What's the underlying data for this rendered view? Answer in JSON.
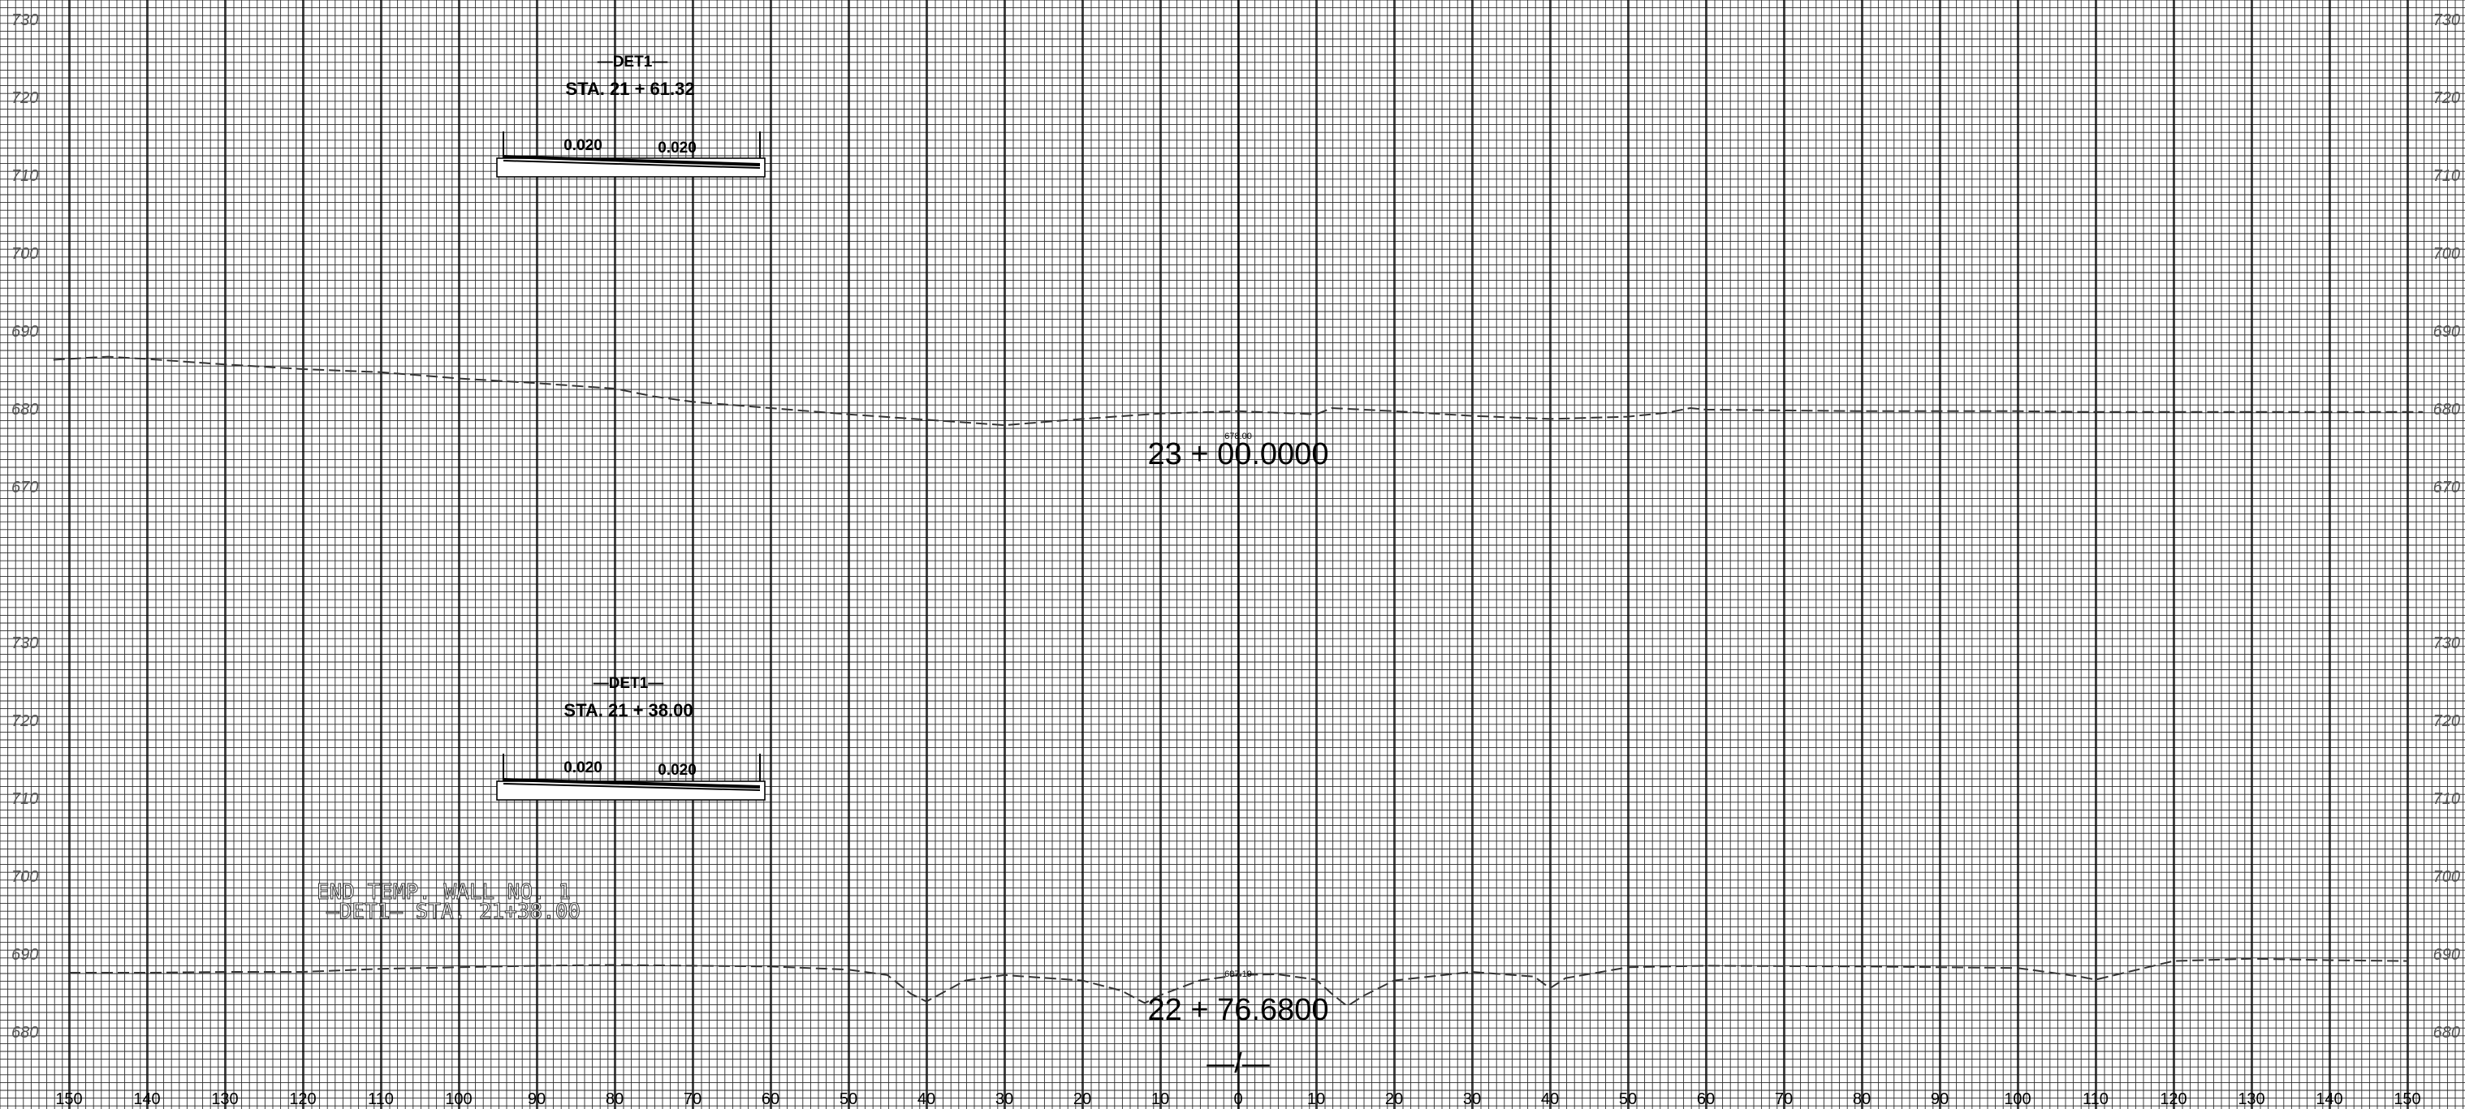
{
  "sections": [
    {
      "id": "upper",
      "detail_label": "—DET1—",
      "station_label": "STA. 21 + 61.32",
      "slope_left": "0.020",
      "slope_right": "0.020",
      "station_title": "23 + 00.0000",
      "center_elevation_label": "678.00",
      "elevations": [
        "730",
        "720",
        "710",
        "700",
        "690",
        "680",
        "670"
      ],
      "ground_profile": [
        [
          152,
          686.2
        ],
        [
          145,
          686.6
        ],
        [
          140,
          686.3
        ],
        [
          130,
          685.6
        ],
        [
          120,
          685.0
        ],
        [
          110,
          684.6
        ],
        [
          100,
          683.8
        ],
        [
          90,
          683.2
        ],
        [
          80,
          682.5
        ],
        [
          75,
          681.5
        ],
        [
          70,
          680.8
        ],
        [
          60,
          680.0
        ],
        [
          50,
          679.2
        ],
        [
          40,
          678.5
        ],
        [
          30,
          677.8
        ],
        [
          20,
          678.6
        ],
        [
          10,
          679.3
        ],
        [
          0,
          679.6
        ],
        [
          -10,
          679.2
        ],
        [
          -12,
          680.0
        ],
        [
          -20,
          679.6
        ],
        [
          -30,
          679.0
        ],
        [
          -40,
          678.6
        ],
        [
          -50,
          678.9
        ],
        [
          -55,
          679.4
        ],
        [
          -58,
          680.0
        ],
        [
          -60,
          679.8
        ],
        [
          -70,
          679.7
        ],
        [
          -80,
          679.6
        ],
        [
          -90,
          679.6
        ],
        [
          -100,
          679.6
        ],
        [
          -110,
          679.5
        ],
        [
          -120,
          679.5
        ],
        [
          -130,
          679.5
        ],
        [
          -140,
          679.5
        ],
        [
          -152,
          679.5
        ]
      ]
    },
    {
      "id": "lower",
      "detail_label": "—DET1—",
      "station_label": "STA. 21 + 38.00",
      "slope_left": "0.020",
      "slope_right": "0.020",
      "station_title": "22 + 76.6800",
      "center_elevation_label": "687.19",
      "note_line1": "END TEMP. WALL NO. 1",
      "note_line2": "—DET1— STA. 21+38.00",
      "elevations": [
        "730",
        "720",
        "710",
        "700",
        "690",
        "680"
      ],
      "ground_profile": [
        [
          150,
          687.5
        ],
        [
          140,
          687.5
        ],
        [
          130,
          687.6
        ],
        [
          120,
          687.6
        ],
        [
          110,
          688.0
        ],
        [
          100,
          688.2
        ],
        [
          90,
          688.4
        ],
        [
          80,
          688.5
        ],
        [
          70,
          688.4
        ],
        [
          60,
          688.3
        ],
        [
          50,
          687.9
        ],
        [
          45,
          687.2
        ],
        [
          42,
          684.8
        ],
        [
          40,
          683.8
        ],
        [
          35,
          686.5
        ],
        [
          30,
          687.2
        ],
        [
          20,
          686.5
        ],
        [
          15,
          685.2
        ],
        [
          12,
          683.6
        ],
        [
          10,
          684.6
        ],
        [
          5,
          686.5
        ],
        [
          0,
          687.2
        ],
        [
          -5,
          687.3
        ],
        [
          -10,
          686.6
        ],
        [
          -12,
          684.8
        ],
        [
          -14,
          683.2
        ],
        [
          -16,
          684.5
        ],
        [
          -20,
          686.5
        ],
        [
          -30,
          687.6
        ],
        [
          -38,
          687.0
        ],
        [
          -40,
          685.5
        ],
        [
          -42,
          686.8
        ],
        [
          -50,
          688.2
        ],
        [
          -60,
          688.4
        ],
        [
          -80,
          688.3
        ],
        [
          -100,
          688.1
        ],
        [
          -108,
          687.0
        ],
        [
          -110,
          686.6
        ],
        [
          -115,
          687.8
        ],
        [
          -120,
          689.0
        ],
        [
          -130,
          689.3
        ],
        [
          -140,
          689.1
        ],
        [
          -150,
          689.0
        ]
      ]
    }
  ],
  "offsets": [
    "150",
    "140",
    "130",
    "120",
    "110",
    "100",
    "90",
    "80",
    "70",
    "60",
    "50",
    "40",
    "30",
    "20",
    "10",
    "0",
    "10",
    "20",
    "30",
    "40",
    "50",
    "60",
    "70",
    "80",
    "90",
    "100",
    "110",
    "120",
    "130",
    "140",
    "150"
  ],
  "centerline_symbol": "—/—",
  "colors": {
    "grid": "#2a2a2a",
    "ink": "#000000",
    "label": "#555555",
    "profile": "#333333"
  }
}
